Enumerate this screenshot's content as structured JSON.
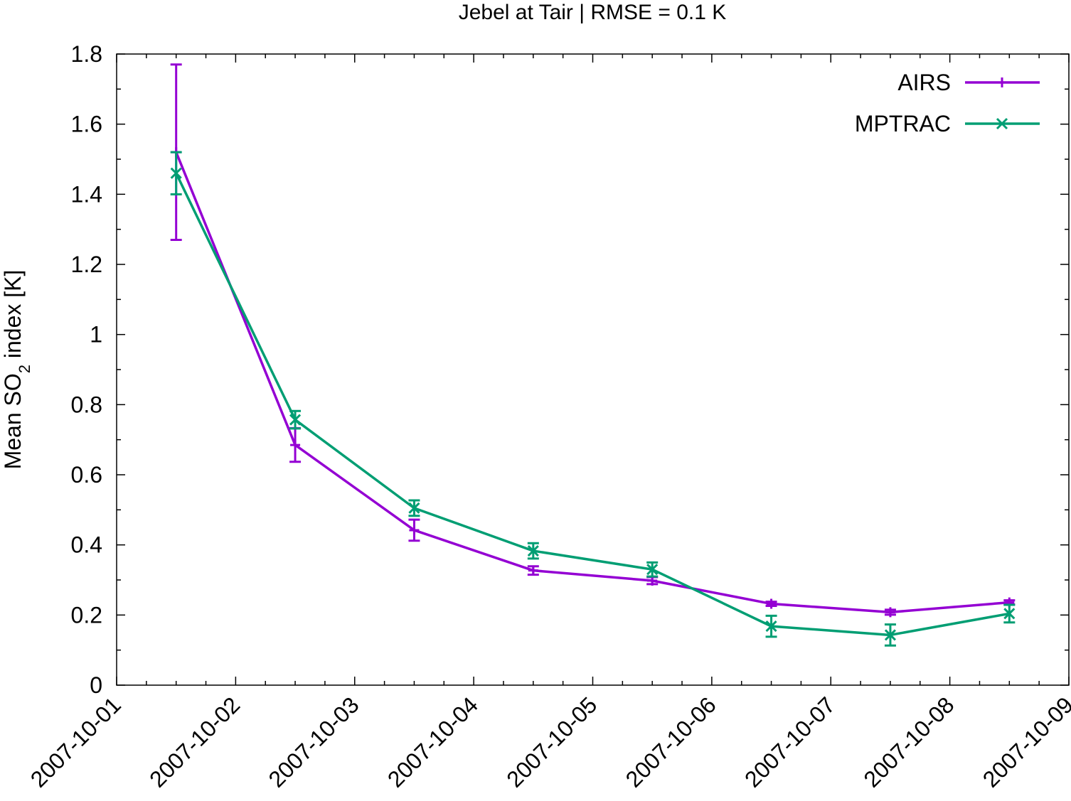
{
  "chart_data": {
    "type": "line",
    "title": "Jebel at Tair | RMSE = 0.1 K",
    "ylabel": {
      "prefix": "Mean SO",
      "subscript": "2",
      "suffix": " index [K]"
    },
    "xlabel": "",
    "xlim": [
      "2007-10-01",
      "2007-10-09"
    ],
    "ylim": [
      0,
      1.8
    ],
    "x_tick_labels": [
      "2007-10-01",
      "2007-10-02",
      "2007-10-03",
      "2007-10-04",
      "2007-10-05",
      "2007-10-06",
      "2007-10-07",
      "2007-10-08",
      "2007-10-09"
    ],
    "y_tick_labels": [
      "0",
      "0.2",
      "0.4",
      "0.6",
      "0.8",
      "1",
      "1.2",
      "1.4",
      "1.6",
      "1.8"
    ],
    "y_ticks": [
      0,
      0.2,
      0.4,
      0.6,
      0.8,
      1,
      1.2,
      1.4,
      1.6,
      1.8
    ],
    "grid": false,
    "legend_position": "top-right",
    "x": [
      "2007-10-01 12:00",
      "2007-10-02 12:00",
      "2007-10-03 12:00",
      "2007-10-04 12:00",
      "2007-10-05 12:00",
      "2007-10-06 12:00",
      "2007-10-07 12:00",
      "2007-10-08 12:00"
    ],
    "series": [
      {
        "name": "AIRS",
        "color": "#9400d3",
        "marker": "plus",
        "values": [
          1.52,
          0.685,
          0.442,
          0.327,
          0.298,
          0.232,
          0.208,
          0.236
        ],
        "error": [
          0.25,
          0.048,
          0.03,
          0.012,
          0.01,
          0.006,
          0.007,
          0.006
        ]
      },
      {
        "name": "MPTRAC",
        "color": "#009e73",
        "marker": "cross",
        "values": [
          1.46,
          0.757,
          0.505,
          0.383,
          0.33,
          0.168,
          0.143,
          0.204
        ],
        "error": [
          0.06,
          0.025,
          0.022,
          0.022,
          0.02,
          0.03,
          0.03,
          0.025
        ]
      }
    ]
  }
}
